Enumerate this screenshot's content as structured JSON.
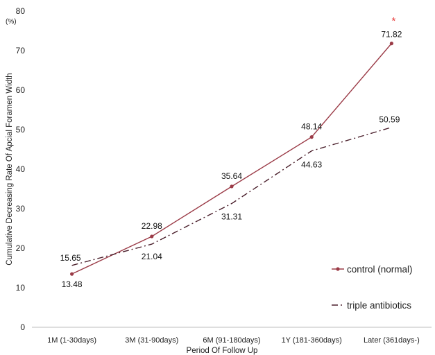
{
  "chart_data": {
    "type": "line",
    "categories": [
      "1M (1-30days)",
      "3M (31-90days)",
      "6M (91-180days)",
      "1Y (181-360days)",
      "Later (361days-)"
    ],
    "series": [
      {
        "name": "control (normal)",
        "values": [
          13.48,
          22.98,
          35.64,
          48.14,
          71.82
        ],
        "labels": [
          "13.48",
          "22.98",
          "35.64",
          "48.14",
          "71.82"
        ],
        "color": "#9b3b47",
        "style": "solid",
        "marker": "circle"
      },
      {
        "name": "triple antibiotics",
        "values": [
          15.65,
          21.04,
          31.31,
          44.63,
          50.59
        ],
        "labels": [
          "15.65",
          "21.04",
          "31.31",
          "44.63",
          "50.59"
        ],
        "color": "#4a1f2b",
        "style": "dash-dot",
        "marker": "none"
      }
    ],
    "xlabel": "Period Of Follow Up",
    "ylabel": "Cumulative Decreasing Rate Of Apcial Foramen Width",
    "yunit": "(%)",
    "ylim": [
      0,
      80
    ],
    "yticks": [
      "0",
      "10",
      "20",
      "30",
      "40",
      "50",
      "60",
      "70",
      "80"
    ],
    "annotation": {
      "text": "*",
      "color": "#e8403f",
      "category": "Later (361days-)"
    },
    "grid": false,
    "legend": "right"
  }
}
